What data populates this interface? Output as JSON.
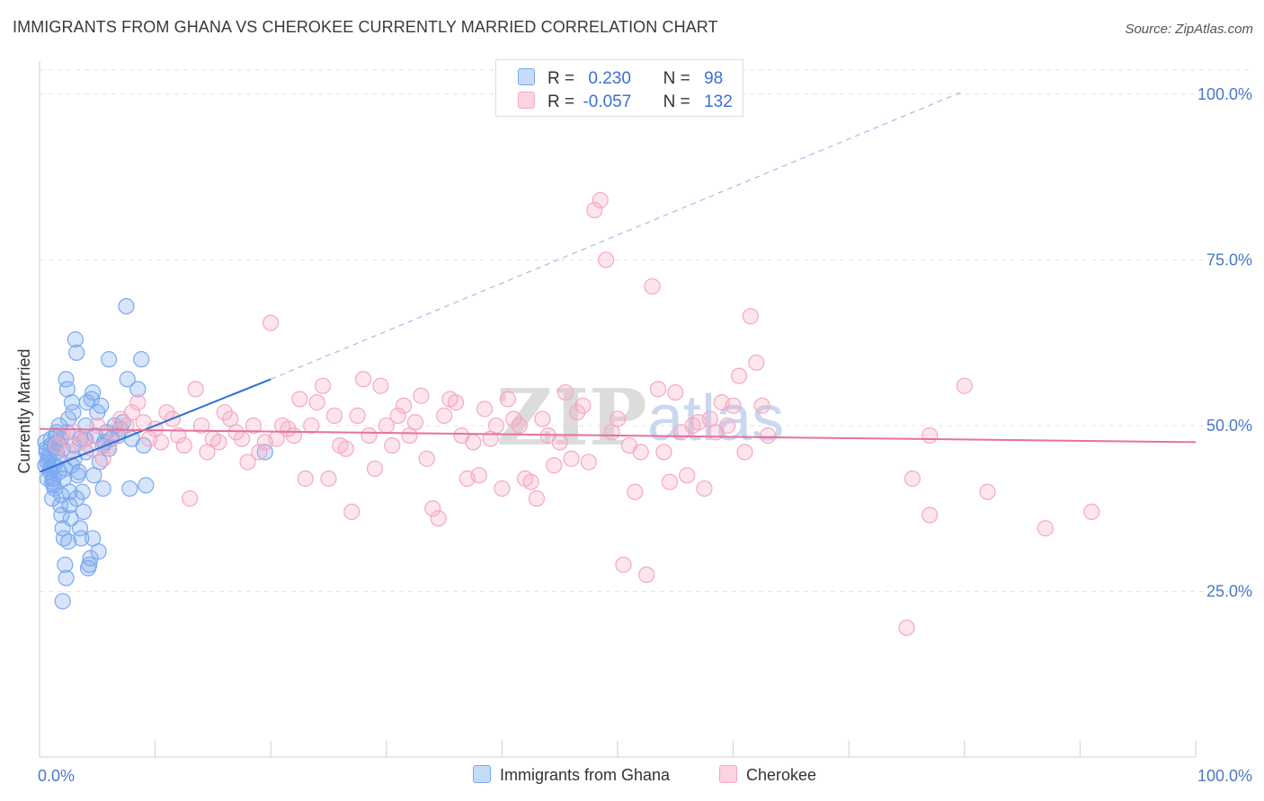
{
  "title": "IMMIGRANTS FROM GHANA VS CHEROKEE CURRENTLY MARRIED CORRELATION CHART",
  "source": "Source: ZipAtlas.com",
  "legend": {
    "r_label": "R =",
    "n_label": "N =",
    "rows": [
      {
        "r": "0.230",
        "n": "98"
      },
      {
        "r": "-0.057",
        "n": "132"
      }
    ]
  },
  "watermark": {
    "zip": "ZIP",
    "atlas": "atlas"
  },
  "chart_data": {
    "type": "scatter",
    "title": "IMMIGRANTS FROM GHANA VS CHEROKEE CURRENTLY MARRIED CORRELATION CHART",
    "xlabel": "",
    "ylabel": "Currently Married",
    "xlim": [
      0,
      100
    ],
    "ylim": [
      0,
      105
    ],
    "x_tick_labels": [
      "0.0%",
      "100.0%"
    ],
    "y_ticks": [
      25,
      50,
      75,
      100
    ],
    "y_tick_labels": [
      "25.0%",
      "50.0%",
      "75.0%",
      "100.0%"
    ],
    "grid": true,
    "legend_position": "top-center",
    "series": [
      {
        "name": "Immigrants from Ghana",
        "color": "#7aaaf0",
        "line_color": "#2f6fd6",
        "r": 0.23,
        "n": 98,
        "trend": {
          "x0": 0,
          "y0": 43.0,
          "x1": 20,
          "y1": 57.0,
          "dash_to_x": 80,
          "dash_to_y": 100.5
        },
        "points": [
          [
            0.5,
            47.5
          ],
          [
            0.6,
            46
          ],
          [
            0.7,
            44.5
          ],
          [
            0.8,
            45.5
          ],
          [
            0.9,
            43.5
          ],
          [
            1.0,
            47
          ],
          [
            1.1,
            41.5
          ],
          [
            1.2,
            42
          ],
          [
            1.3,
            40.5
          ],
          [
            1.4,
            48.5
          ],
          [
            0.5,
            44
          ],
          [
            0.6,
            46.5
          ],
          [
            0.8,
            45
          ],
          [
            0.9,
            43
          ],
          [
            1.0,
            48
          ],
          [
            1.1,
            39
          ],
          [
            1.2,
            41
          ],
          [
            1.3,
            44
          ],
          [
            1.5,
            46
          ],
          [
            1.6,
            47.5
          ],
          [
            1.7,
            50
          ],
          [
            1.8,
            48
          ],
          [
            1.9,
            39.5
          ],
          [
            2.0,
            46.5
          ],
          [
            2.1,
            42
          ],
          [
            2.2,
            43.5
          ],
          [
            2.3,
            57
          ],
          [
            2.4,
            55.5
          ],
          [
            2.5,
            51
          ],
          [
            2.6,
            40
          ],
          [
            1.8,
            38
          ],
          [
            1.9,
            36.5
          ],
          [
            2.0,
            34.5
          ],
          [
            2.1,
            33
          ],
          [
            2.2,
            29
          ],
          [
            2.3,
            27
          ],
          [
            2.0,
            23.5
          ],
          [
            2.5,
            32.5
          ],
          [
            2.6,
            38
          ],
          [
            2.7,
            36
          ],
          [
            2.8,
            53.5
          ],
          [
            2.9,
            52
          ],
          [
            3.0,
            45
          ],
          [
            3.1,
            63
          ],
          [
            3.2,
            61
          ],
          [
            3.3,
            42.5
          ],
          [
            3.4,
            43
          ],
          [
            3.5,
            34.5
          ],
          [
            3.6,
            33
          ],
          [
            3.7,
            40
          ],
          [
            3.8,
            37
          ],
          [
            3.9,
            48
          ],
          [
            4.0,
            50
          ],
          [
            4.1,
            53.5
          ],
          [
            4.2,
            28.5
          ],
          [
            4.3,
            29
          ],
          [
            4.4,
            30
          ],
          [
            4.5,
            54
          ],
          [
            4.6,
            55
          ],
          [
            4.7,
            42.5
          ],
          [
            4.8,
            48.5
          ],
          [
            5.0,
            52
          ],
          [
            5.1,
            31
          ],
          [
            5.2,
            44.5
          ],
          [
            5.3,
            53
          ],
          [
            5.5,
            40.5
          ],
          [
            5.6,
            47.5
          ],
          [
            5.8,
            49
          ],
          [
            6.0,
            60
          ],
          [
            6.2,
            48
          ],
          [
            6.5,
            50
          ],
          [
            6.8,
            48.5
          ],
          [
            7.0,
            49.5
          ],
          [
            7.2,
            50.5
          ],
          [
            7.5,
            68
          ],
          [
            7.6,
            57
          ],
          [
            7.8,
            40.5
          ],
          [
            8.0,
            48
          ],
          [
            8.5,
            55.5
          ],
          [
            8.8,
            60
          ],
          [
            9.0,
            47
          ],
          [
            9.2,
            41
          ],
          [
            1.5,
            49
          ],
          [
            1.6,
            45
          ],
          [
            1.7,
            43
          ],
          [
            3.0,
            47
          ],
          [
            3.5,
            48
          ],
          [
            4.0,
            46
          ],
          [
            5.5,
            47
          ],
          [
            6.0,
            46.5
          ],
          [
            2.4,
            49
          ],
          [
            1.3,
            47
          ],
          [
            0.7,
            42
          ],
          [
            1.1,
            44
          ],
          [
            2.8,
            44
          ],
          [
            3.2,
            39
          ],
          [
            4.6,
            33
          ],
          [
            19.5,
            46
          ]
        ]
      },
      {
        "name": "Cherokee",
        "color": "#f4a8c4",
        "line_color": "#e8709c",
        "r": -0.057,
        "n": 132,
        "trend": {
          "x0": 0,
          "y0": 49.5,
          "x1": 100,
          "y1": 47.5
        },
        "points": [
          [
            1.5,
            47
          ],
          [
            2,
            48.5
          ],
          [
            2.5,
            46
          ],
          [
            3,
            49
          ],
          [
            3.5,
            47.5
          ],
          [
            4,
            48
          ],
          [
            4.5,
            46.5
          ],
          [
            5,
            50
          ],
          [
            5.5,
            45
          ],
          [
            6,
            47
          ],
          [
            6.5,
            49
          ],
          [
            7,
            51
          ],
          [
            7.5,
            50
          ],
          [
            8,
            52
          ],
          [
            8.5,
            53.5
          ],
          [
            9,
            50.5
          ],
          [
            9.5,
            48
          ],
          [
            10,
            49.5
          ],
          [
            10.5,
            47.5
          ],
          [
            11,
            52
          ],
          [
            11.5,
            51
          ],
          [
            12,
            48.5
          ],
          [
            12.5,
            47
          ],
          [
            13,
            39
          ],
          [
            13.5,
            55.5
          ],
          [
            14,
            50
          ],
          [
            14.5,
            46
          ],
          [
            15,
            48
          ],
          [
            15.5,
            47.5
          ],
          [
            16,
            52
          ],
          [
            16.5,
            51
          ],
          [
            17,
            49
          ],
          [
            17.5,
            48
          ],
          [
            18,
            44.5
          ],
          [
            18.5,
            50
          ],
          [
            19,
            46
          ],
          [
            19.5,
            47.5
          ],
          [
            20,
            65.5
          ],
          [
            20.5,
            48
          ],
          [
            21,
            50
          ],
          [
            21.5,
            49.5
          ],
          [
            22,
            48.5
          ],
          [
            22.5,
            54
          ],
          [
            23,
            42
          ],
          [
            23.5,
            50
          ],
          [
            24,
            53.5
          ],
          [
            24.5,
            56
          ],
          [
            25,
            42
          ],
          [
            25.5,
            51.5
          ],
          [
            26,
            47
          ],
          [
            26.5,
            46.5
          ],
          [
            27,
            37
          ],
          [
            27.5,
            51.5
          ],
          [
            28,
            57
          ],
          [
            28.5,
            48.5
          ],
          [
            29,
            43.5
          ],
          [
            29.5,
            56
          ],
          [
            30,
            50
          ],
          [
            30.5,
            47
          ],
          [
            31,
            51.5
          ],
          [
            31.5,
            53
          ],
          [
            32,
            48.5
          ],
          [
            32.5,
            50.5
          ],
          [
            33,
            54.5
          ],
          [
            33.5,
            45
          ],
          [
            34,
            37.5
          ],
          [
            34.5,
            36
          ],
          [
            35,
            51.5
          ],
          [
            35.5,
            54
          ],
          [
            36,
            53.5
          ],
          [
            36.5,
            48.5
          ],
          [
            37,
            42
          ],
          [
            37.5,
            47.5
          ],
          [
            38,
            42.5
          ],
          [
            38.5,
            52.5
          ],
          [
            39,
            48
          ],
          [
            39.5,
            50
          ],
          [
            40,
            40.5
          ],
          [
            40.5,
            54
          ],
          [
            41,
            51
          ],
          [
            41.5,
            50
          ],
          [
            42,
            42
          ],
          [
            42.5,
            41.5
          ],
          [
            43,
            39
          ],
          [
            43.5,
            51
          ],
          [
            44,
            48.5
          ],
          [
            44.5,
            44
          ],
          [
            45,
            47.5
          ],
          [
            45.5,
            55
          ],
          [
            46,
            45
          ],
          [
            46.5,
            52
          ],
          [
            47,
            53
          ],
          [
            47.5,
            44.5
          ],
          [
            48,
            82.5
          ],
          [
            48.5,
            84
          ],
          [
            49,
            75
          ],
          [
            49.5,
            49
          ],
          [
            50,
            51
          ],
          [
            50.5,
            29
          ],
          [
            51,
            47
          ],
          [
            51.5,
            40
          ],
          [
            52,
            46
          ],
          [
            52.5,
            27.5
          ],
          [
            53,
            71
          ],
          [
            53.5,
            55.5
          ],
          [
            54,
            46
          ],
          [
            54.5,
            41.5
          ],
          [
            55,
            55
          ],
          [
            55.5,
            49
          ],
          [
            56,
            42.5
          ],
          [
            56.5,
            50
          ],
          [
            57,
            50.5
          ],
          [
            57.5,
            40.5
          ],
          [
            58,
            51
          ],
          [
            58.5,
            49
          ],
          [
            59,
            53.5
          ],
          [
            59.5,
            50
          ],
          [
            60,
            53
          ],
          [
            60.5,
            57.5
          ],
          [
            61,
            46
          ],
          [
            61.5,
            66.5
          ],
          [
            62,
            59.5
          ],
          [
            62.5,
            53
          ],
          [
            63,
            48.5
          ],
          [
            75,
            19.5
          ],
          [
            75.5,
            42
          ],
          [
            77,
            36.5
          ],
          [
            80,
            56
          ],
          [
            82,
            40
          ],
          [
            87,
            34.5
          ],
          [
            91,
            37
          ],
          [
            77,
            48.5
          ]
        ]
      }
    ]
  }
}
